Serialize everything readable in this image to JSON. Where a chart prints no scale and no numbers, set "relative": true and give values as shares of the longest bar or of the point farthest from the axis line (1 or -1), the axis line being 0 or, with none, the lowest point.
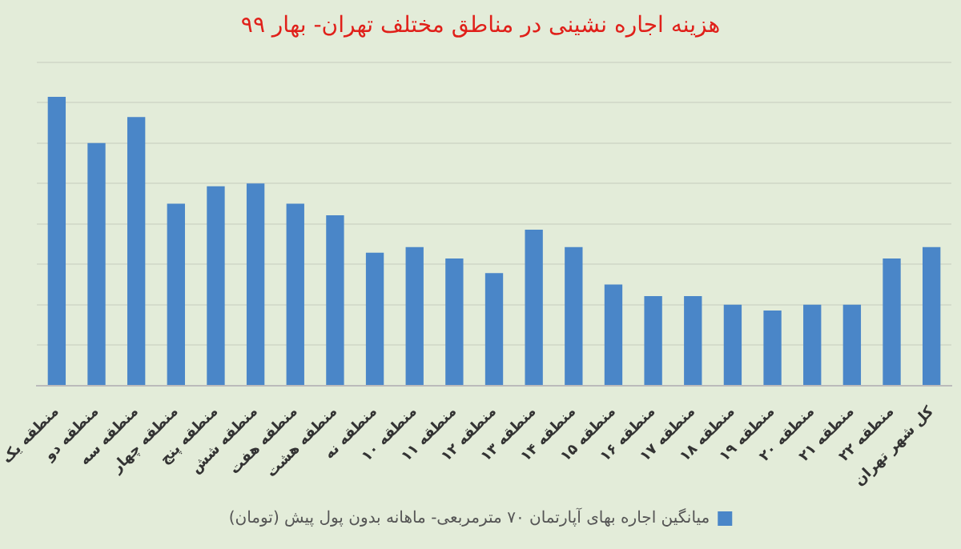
{
  "chart_data": {
    "type": "bar",
    "title": "هزینه اجاره نشینی در مناطق مختلف تهران- بهار ۹۹",
    "relative": true,
    "grid": true,
    "legend": "bottom",
    "categories": [
      "منطقه یک",
      "منطقه دو",
      "منطقه سه",
      "منطقه چهار",
      "منطقه پنج",
      "منطقه شش",
      "منطقه هفت",
      "منطقه هشت",
      "منطقه نه",
      "منطقه ۱۰",
      "منطقه ۱۱",
      "منطقه ۱۲",
      "منطقه ۱۳",
      "منطقه ۱۴",
      "منطقه ۱۵",
      "منطقه ۱۶",
      "منطقه ۱۷",
      "منطقه ۱۸",
      "منطقه ۱۹",
      "منطقه ۲۰",
      "منطقه ۲۱",
      "منطقه ۲۲",
      "کل شهر تهران"
    ],
    "series": [
      {
        "name": "میانگین اجاره بهای آپارتمان ۷۰ مترمربعی- ماهانه بدون پول پیش (تومان)",
        "color": "#4a86c8",
        "values": [
          1,
          0.84,
          0.93,
          0.63,
          0.69,
          0.7,
          0.63,
          0.59,
          0.46,
          0.48,
          0.44,
          0.39,
          0.54,
          0.48,
          0.35,
          0.31,
          0.31,
          0.28,
          0.26,
          0.28,
          0.28,
          0.44,
          0.48
        ]
      }
    ]
  }
}
